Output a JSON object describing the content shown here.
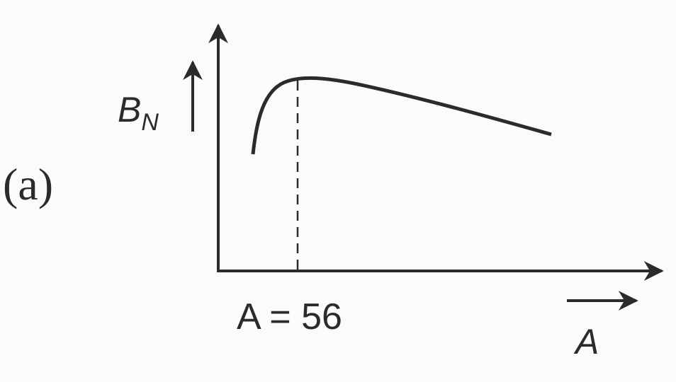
{
  "figure_label": "(a)",
  "y_axis_label": {
    "main": "B",
    "sub": "N"
  },
  "x_axis_label": "A",
  "annotation": "A = 56"
}
